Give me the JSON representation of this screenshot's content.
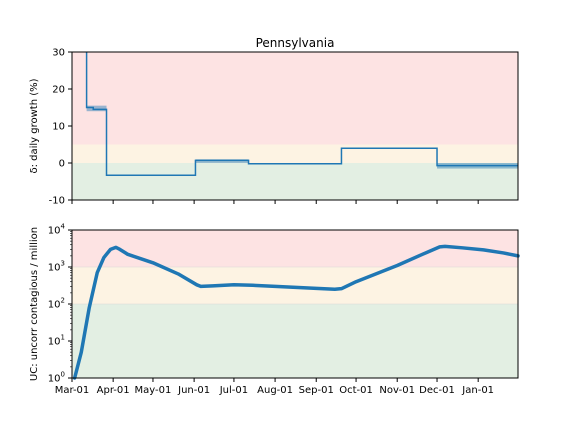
{
  "figure": {
    "title": "Pennsylvania"
  },
  "chart_data": [
    {
      "type": "line",
      "subtype": "step",
      "title": "Pennsylvania",
      "xlabel": "",
      "ylabel": "δ: daily growth (%)",
      "ylim": [
        -10,
        30
      ],
      "yticks": [
        -10,
        0,
        10,
        20,
        30
      ],
      "xlim": [
        "2020-03-01",
        "2021-01-31"
      ],
      "xticks": [
        "Mar-01",
        "Apr-01",
        "May-01",
        "Jun-01",
        "Jul-01",
        "Aug-01",
        "Sep-01",
        "Oct-01",
        "Nov-01",
        "Dec-01",
        "Jan-01"
      ],
      "grid": false,
      "bands": [
        {
          "from": -10,
          "to": 0,
          "color": "#e3efe3"
        },
        {
          "from": 0,
          "to": 5,
          "color": "#fdf3e3"
        },
        {
          "from": 5,
          "to": 30,
          "color": "#fde3e3"
        }
      ],
      "series": [
        {
          "color": "#1f77b4",
          "points": [
            [
              "2020-03-12",
              30
            ],
            [
              "2020-03-12",
              15
            ],
            [
              "2020-03-17",
              15
            ],
            [
              "2020-03-17",
              14.5
            ],
            [
              "2020-03-27",
              14.5
            ],
            [
              "2020-03-27",
              -3.3
            ],
            [
              "2020-06-02",
              -3.3
            ],
            [
              "2020-06-02",
              0.7
            ],
            [
              "2020-07-12",
              0.7
            ],
            [
              "2020-07-12",
              -0.2
            ],
            [
              "2020-09-20",
              -0.2
            ],
            [
              "2020-09-20",
              4
            ],
            [
              "2020-12-01",
              4
            ],
            [
              "2020-12-01",
              -0.7
            ],
            [
              "2021-01-31",
              -0.7
            ]
          ],
          "uncertainty": [
            {
              "from": "2020-03-12",
              "to": "2020-03-27",
              "low": 14,
              "high": 15.5
            },
            {
              "from": "2020-06-02",
              "to": "2020-07-12",
              "low": 0,
              "high": 1
            },
            {
              "from": "2020-12-01",
              "to": "2021-01-31",
              "low": -1.5,
              "high": 0
            }
          ]
        }
      ]
    },
    {
      "type": "line",
      "title": "",
      "xlabel": "",
      "ylabel": "UC: uncorr contagious / million",
      "yscale": "log",
      "ylim": [
        1,
        10000
      ],
      "yticks": [
        "10^0",
        "10^1",
        "10^2",
        "10^3",
        "10^4"
      ],
      "xlim": [
        "2020-03-01",
        "2021-01-31"
      ],
      "xticks": [
        "Mar-01",
        "Apr-01",
        "May-01",
        "Jun-01",
        "Jul-01",
        "Aug-01",
        "Sep-01",
        "Oct-01",
        "Nov-01",
        "Dec-01",
        "Jan-01"
      ],
      "grid": false,
      "bands": [
        {
          "from": 1,
          "to": 100,
          "color": "#e3efe3"
        },
        {
          "from": 100,
          "to": 1000,
          "color": "#fdf3e3"
        },
        {
          "from": 1000,
          "to": 10000,
          "color": "#fde3e3"
        }
      ],
      "series": [
        {
          "color": "#1f77b4",
          "points": [
            [
              "2020-03-03",
              1
            ],
            [
              "2020-03-08",
              5
            ],
            [
              "2020-03-14",
              80
            ],
            [
              "2020-03-20",
              700
            ],
            [
              "2020-03-25",
              1800
            ],
            [
              "2020-03-30",
              3000
            ],
            [
              "2020-04-03",
              3400
            ],
            [
              "2020-04-06",
              3000
            ],
            [
              "2020-04-12",
              2200
            ],
            [
              "2020-05-01",
              1300
            ],
            [
              "2020-05-20",
              650
            ],
            [
              "2020-06-03",
              330
            ],
            [
              "2020-06-06",
              300
            ],
            [
              "2020-06-15",
              310
            ],
            [
              "2020-07-01",
              330
            ],
            [
              "2020-07-15",
              320
            ],
            [
              "2020-08-01",
              300
            ],
            [
              "2020-09-01",
              265
            ],
            [
              "2020-09-15",
              250
            ],
            [
              "2020-09-20",
              260
            ],
            [
              "2020-10-01",
              400
            ],
            [
              "2020-11-01",
              1100
            ],
            [
              "2020-11-20",
              2200
            ],
            [
              "2020-12-03",
              3500
            ],
            [
              "2020-12-07",
              3600
            ],
            [
              "2020-12-20",
              3300
            ],
            [
              "2021-01-05",
              2900
            ],
            [
              "2021-01-20",
              2400
            ],
            [
              "2021-01-31",
              2000
            ]
          ]
        }
      ]
    }
  ]
}
